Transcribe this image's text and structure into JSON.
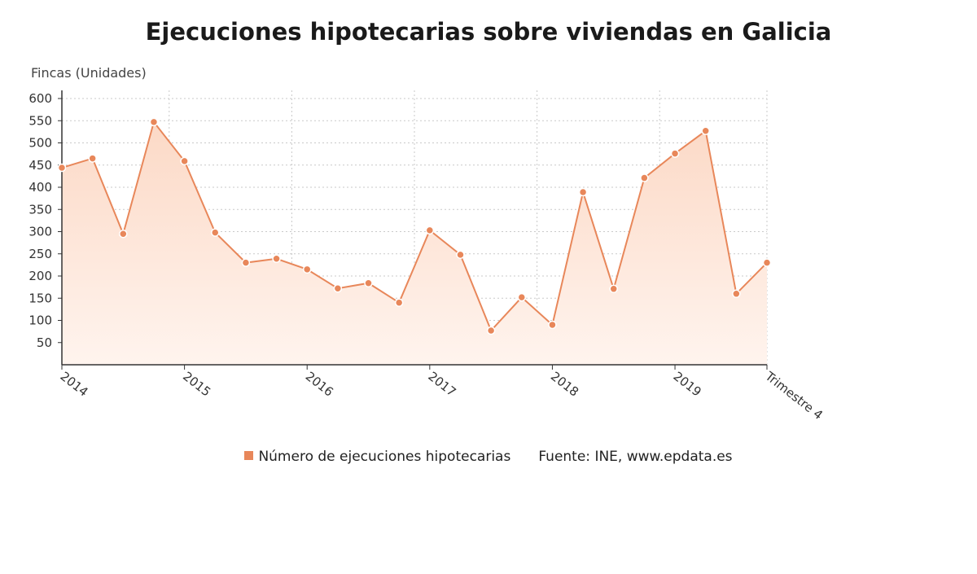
{
  "title": "Ejecuciones hipotecarias sobre viviendas en Galicia",
  "colors": {
    "series": "#e8875a",
    "fill_top": "#fcd9c6",
    "fill_bottom": "#fff4ee",
    "grid": "#c9c9c9"
  },
  "legend": {
    "series_label": "Número de ejecuciones hipotecarias",
    "source": "Fuente: INE, www.epdata.es"
  },
  "chart_data": {
    "type": "area",
    "ylabel": "Fincas (Unidades)",
    "xlabel": "",
    "ylim": [
      0,
      600
    ],
    "yticks": [
      50,
      100,
      150,
      200,
      250,
      300,
      350,
      400,
      450,
      500,
      550,
      600
    ],
    "grid": true,
    "x": [
      "2014 T1",
      "2014 T2",
      "2014 T3",
      "2014 T4",
      "2015 T1",
      "2015 T2",
      "2015 T3",
      "2015 T4",
      "2016 T1",
      "2016 T2",
      "2016 T3",
      "2016 T4",
      "2017 T1",
      "2017 T2",
      "2017 T3",
      "2017 T4",
      "2018 T1",
      "2018 T2",
      "2018 T3",
      "2018 T4",
      "2019 T1",
      "2019 T2",
      "2019 T3",
      "2019 T4"
    ],
    "xtick_labels": [
      {
        "index": 0,
        "label": "2014"
      },
      {
        "index": 4,
        "label": "2015"
      },
      {
        "index": 8,
        "label": "2016"
      },
      {
        "index": 12,
        "label": "2017"
      },
      {
        "index": 16,
        "label": "2018"
      },
      {
        "index": 20,
        "label": "2019"
      },
      {
        "index": 23,
        "label": "Trimestre 4"
      }
    ],
    "series": [
      {
        "name": "Número de ejecuciones hipotecarias",
        "values": [
          444,
          465,
          295,
          547,
          459,
          298,
          230,
          239,
          215,
          172,
          184,
          140,
          303,
          248,
          77,
          152,
          90,
          389,
          171,
          421,
          476,
          527,
          160,
          230
        ]
      }
    ]
  }
}
